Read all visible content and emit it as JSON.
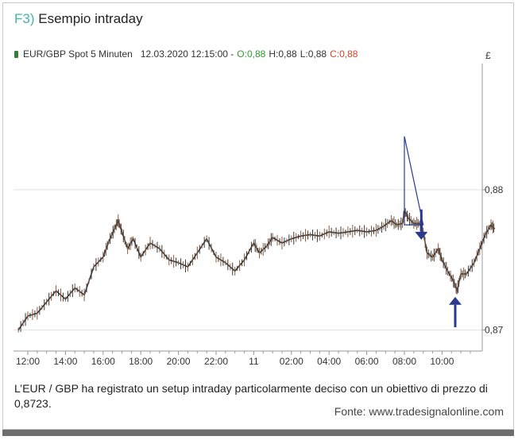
{
  "figure": {
    "label": "F3)",
    "title": "Esempio intraday"
  },
  "legend": {
    "instrument": "EUR/GBP Spot 5 Minuten",
    "datetime": "12.03.2020 12:15:00 -",
    "open": "O:0,88",
    "high": "H:0,88",
    "low": "L:0,88",
    "close": "C:0,88"
  },
  "caption": "L’EUR / GBP ha registrato un setup intraday particolarmente deciso con un obiettivo di prezzo di 0,8723.",
  "source": "Fonte: www.tradesignalonline.com",
  "colors": {
    "candle": "#3a3a3a",
    "candle_accent": "#8b5a3c",
    "annotation": "#2b3a8f",
    "grid": "#e2e2e2",
    "axis": "#999999"
  },
  "chart_data": {
    "type": "line",
    "series_label": "EUR/GBP Spot 5 Minuten",
    "y_unit": "£",
    "x_tick_labels": [
      "12:00",
      "14:00",
      "16:00",
      "18:00",
      "20:00",
      "22:00",
      "11",
      "02:00",
      "04:00",
      "06:00",
      "08:00",
      "10:00"
    ],
    "y_tick_labels": [
      "0,88",
      "0,87"
    ],
    "y_ticks": [
      0.88,
      0.87
    ],
    "ylim": [
      0.8685,
      0.889
    ],
    "x_range_hours": [
      -0.5,
      24.8
    ],
    "grid": true,
    "points": [
      [
        -0.5,
        0.87
      ],
      [
        0.0,
        0.871
      ],
      [
        0.5,
        0.8712
      ],
      [
        1.0,
        0.872
      ],
      [
        1.5,
        0.8728
      ],
      [
        2.0,
        0.8722
      ],
      [
        2.5,
        0.873
      ],
      [
        3.0,
        0.8725
      ],
      [
        3.5,
        0.8745
      ],
      [
        4.0,
        0.8752
      ],
      [
        4.3,
        0.8763
      ],
      [
        4.6,
        0.8772
      ],
      [
        4.8,
        0.8778
      ],
      [
        5.0,
        0.877
      ],
      [
        5.3,
        0.8758
      ],
      [
        5.6,
        0.8765
      ],
      [
        6.0,
        0.8752
      ],
      [
        6.5,
        0.8762
      ],
      [
        7.0,
        0.8758
      ],
      [
        7.5,
        0.875
      ],
      [
        8.0,
        0.8748
      ],
      [
        8.5,
        0.8745
      ],
      [
        9.0,
        0.8755
      ],
      [
        9.5,
        0.8765
      ],
      [
        10.0,
        0.8752
      ],
      [
        10.5,
        0.8748
      ],
      [
        11.0,
        0.8742
      ],
      [
        11.5,
        0.875
      ],
      [
        12.0,
        0.8762
      ],
      [
        12.3,
        0.8755
      ],
      [
        12.7,
        0.876
      ],
      [
        13.0,
        0.8766
      ],
      [
        13.5,
        0.8762
      ],
      [
        14.0,
        0.8765
      ],
      [
        14.5,
        0.8767
      ],
      [
        15.0,
        0.8768
      ],
      [
        15.5,
        0.8767
      ],
      [
        16.0,
        0.877
      ],
      [
        16.5,
        0.8769
      ],
      [
        17.0,
        0.877
      ],
      [
        17.5,
        0.8771
      ],
      [
        18.0,
        0.877
      ],
      [
        18.5,
        0.8771
      ],
      [
        18.9,
        0.8774
      ],
      [
        19.3,
        0.8778
      ],
      [
        19.6,
        0.8775
      ],
      [
        19.9,
        0.8776
      ],
      [
        20.0,
        0.8785
      ],
      [
        20.2,
        0.878
      ],
      [
        20.5,
        0.8776
      ],
      [
        20.8,
        0.8776
      ],
      [
        21.0,
        0.877
      ],
      [
        21.2,
        0.8755
      ],
      [
        21.5,
        0.8752
      ],
      [
        21.8,
        0.8758
      ],
      [
        22.0,
        0.875
      ],
      [
        22.3,
        0.8742
      ],
      [
        22.6,
        0.8735
      ],
      [
        22.8,
        0.8728
      ],
      [
        23.0,
        0.874
      ],
      [
        23.3,
        0.874
      ],
      [
        23.7,
        0.8748
      ],
      [
        24.0,
        0.8758
      ],
      [
        24.3,
        0.8768
      ],
      [
        24.6,
        0.8775
      ],
      [
        24.8,
        0.8772
      ]
    ],
    "annotations": [
      {
        "type": "arrow-down",
        "x": 20.9,
        "y_from": 0.8786,
        "y_to": 0.877
      },
      {
        "type": "arrow-up",
        "x": 22.7,
        "y_from": 0.8702,
        "y_to": 0.8718
      },
      {
        "type": "triangle",
        "points": [
          [
            20.0,
            0.8838
          ],
          [
            20.0,
            0.8775
          ],
          [
            21.0,
            0.8775
          ]
        ]
      }
    ]
  }
}
